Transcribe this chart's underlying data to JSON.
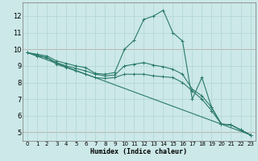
{
  "xlabel": "Humidex (Indice chaleur)",
  "bg_color": "#cce8e8",
  "grid_color": "#b0d4d4",
  "line_color": "#2a7a6a",
  "xlim": [
    -0.5,
    23.5
  ],
  "ylim": [
    4.5,
    12.8
  ],
  "xticks": [
    0,
    1,
    2,
    3,
    4,
    5,
    6,
    7,
    8,
    9,
    10,
    11,
    12,
    13,
    14,
    15,
    16,
    17,
    18,
    19,
    20,
    21,
    22,
    23
  ],
  "yticks": [
    5,
    6,
    7,
    8,
    9,
    10,
    11,
    12
  ],
  "series": [
    {
      "x": [
        0,
        1,
        2,
        3,
        4,
        5,
        6,
        7,
        8,
        9,
        10,
        11,
        12,
        13,
        14,
        15,
        16,
        17,
        18,
        19,
        20,
        21,
        22,
        23
      ],
      "y": [
        9.8,
        9.7,
        9.6,
        9.3,
        9.15,
        9.0,
        8.9,
        8.55,
        8.5,
        8.6,
        10.0,
        10.55,
        11.8,
        12.0,
        12.35,
        11.0,
        10.5,
        7.0,
        8.3,
        6.5,
        5.5,
        5.45,
        5.15,
        4.85
      ],
      "marker": true
    },
    {
      "x": [
        0,
        1,
        2,
        3,
        4,
        5,
        6,
        7,
        8,
        9,
        10,
        11,
        12,
        13,
        14,
        15,
        16,
        17,
        18,
        19,
        20,
        21,
        22,
        23
      ],
      "y": [
        9.8,
        9.65,
        9.5,
        9.2,
        9.0,
        8.85,
        8.7,
        8.5,
        8.4,
        8.45,
        9.0,
        9.1,
        9.2,
        9.05,
        8.95,
        8.8,
        8.5,
        7.6,
        7.2,
        6.5,
        5.5,
        5.45,
        5.15,
        4.85
      ],
      "marker": true
    },
    {
      "x": [
        0,
        1,
        2,
        3,
        4,
        5,
        6,
        7,
        8,
        9,
        10,
        11,
        12,
        13,
        14,
        15,
        16,
        17,
        18,
        19,
        20,
        21,
        22,
        23
      ],
      "y": [
        9.8,
        9.6,
        9.5,
        9.1,
        8.9,
        8.7,
        8.5,
        8.3,
        8.25,
        8.3,
        8.5,
        8.5,
        8.5,
        8.4,
        8.35,
        8.3,
        8.0,
        7.5,
        7.0,
        6.3,
        5.5,
        5.45,
        5.15,
        4.85
      ],
      "marker": true
    },
    {
      "x": [
        0,
        23
      ],
      "y": [
        9.8,
        4.85
      ],
      "marker": false
    }
  ]
}
